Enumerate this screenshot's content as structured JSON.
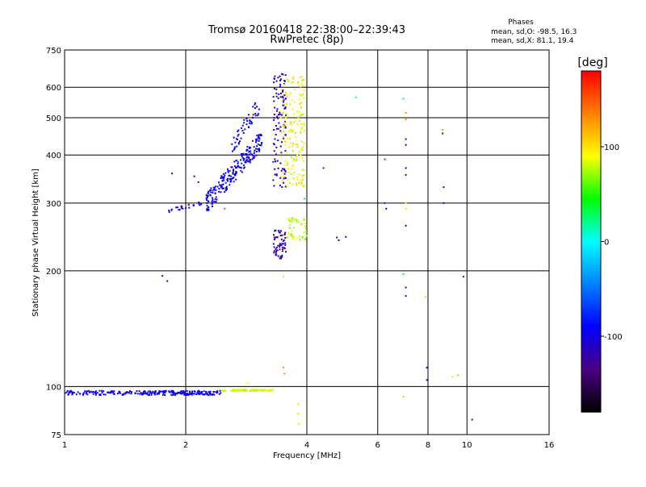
{
  "chart_data": {
    "type": "scatter",
    "title": "Tromsø 20160418 22:38:00–22:39:43",
    "subtitle": "RwPretec (8p)",
    "xlabel": "Frequency [MHz]",
    "ylabel": "Stationary phase Virtual Height [km]",
    "x_scale": "log2",
    "y_scale": "log",
    "xlim": [
      1,
      16
    ],
    "ylim": [
      75,
      750
    ],
    "x_ticks": [
      1,
      2,
      4,
      6,
      8,
      10,
      16
    ],
    "y_ticks": [
      75,
      100,
      200,
      300,
      400,
      500,
      600,
      750
    ],
    "grid": true,
    "stats": {
      "header": "Phases",
      "line_o": "mean, sd,O: -98.5, 16.3",
      "line_x": "mean, sd,X:  81.1, 19.4"
    },
    "colorbar": {
      "label": "[deg]",
      "range": [
        -180,
        180
      ],
      "ticks": [
        100,
        0,
        -100
      ],
      "colors": [
        "#000000",
        "#4b0082",
        "#0000ff",
        "#0080ff",
        "#00ffff",
        "#00ff00",
        "#ffff00",
        "#ff8000",
        "#ff0000"
      ]
    },
    "clusters": [
      {
        "desc": "blue E-layer trace",
        "f": [
          1.0,
          2.45
        ],
        "h": [
          95,
          97.5
        ],
        "phase": [
          -110,
          -85
        ],
        "n": 260,
        "shape": "flat",
        "spread": 0.004
      },
      {
        "desc": "yellow E-layer trace",
        "f": [
          2.45,
          3.3
        ],
        "h": [
          97.3,
          98.2
        ],
        "phase": [
          70,
          95
        ],
        "n": 110,
        "shape": "flat",
        "spread": 0.004
      },
      {
        "desc": "F trace low",
        "f": [
          1.8,
          2.2
        ],
        "h": [
          286,
          300
        ],
        "phase": [
          -115,
          -90
        ],
        "n": 22,
        "shape": "rise",
        "spread": 0.01
      },
      {
        "desc": "F trace",
        "f": [
          2.25,
          3.1
        ],
        "h": [
          300,
          440
        ],
        "phase": [
          -120,
          -75
        ],
        "n": 240,
        "shape": "rise",
        "spread": 0.06
      },
      {
        "desc": "F trace upper",
        "f": [
          2.6,
          3.05
        ],
        "h": [
          420,
          540
        ],
        "phase": [
          -110,
          -80
        ],
        "n": 50,
        "shape": "rise",
        "spread": 0.05
      },
      {
        "desc": "blue column near 3.4 MHz",
        "f": [
          3.3,
          3.55
        ],
        "h": [
          330,
          650
        ],
        "phase": [
          -130,
          -90
        ],
        "n": 110,
        "shape": "cloud",
        "spread": 0
      },
      {
        "desc": "yellow column near 3.7 MHz",
        "f": [
          3.45,
          3.95
        ],
        "h": [
          330,
          640
        ],
        "phase": [
          70,
          110
        ],
        "n": 160,
        "shape": "cloud",
        "spread": 0
      },
      {
        "desc": "blue/purple blob",
        "f": [
          3.3,
          3.55
        ],
        "h": [
          215,
          255
        ],
        "phase": [
          -140,
          -100
        ],
        "n": 60,
        "shape": "cloud",
        "spread": 0
      },
      {
        "desc": "yellow blob",
        "f": [
          3.55,
          4.0
        ],
        "h": [
          240,
          275
        ],
        "phase": [
          60,
          100
        ],
        "n": 45,
        "shape": "cloud",
        "spread": 0
      }
    ],
    "points": [
      {
        "x": 1.85,
        "y": 358,
        "phase": -120
      },
      {
        "x": 1.75,
        "y": 194,
        "phase": -130
      },
      {
        "x": 1.8,
        "y": 188,
        "phase": -120
      },
      {
        "x": 2.1,
        "y": 352,
        "phase": -110
      },
      {
        "x": 2.15,
        "y": 340,
        "phase": -110
      },
      {
        "x": 2.5,
        "y": 290,
        "phase": 150
      },
      {
        "x": 2.85,
        "y": 102,
        "phase": 90
      },
      {
        "x": 3.5,
        "y": 193,
        "phase": 80
      },
      {
        "x": 3.5,
        "y": 112,
        "phase": 130
      },
      {
        "x": 3.52,
        "y": 108,
        "phase": 130
      },
      {
        "x": 3.8,
        "y": 90,
        "phase": 80
      },
      {
        "x": 3.8,
        "y": 85,
        "phase": 80
      },
      {
        "x": 3.82,
        "y": 80,
        "phase": 80
      },
      {
        "x": 3.95,
        "y": 308,
        "phase": 30
      },
      {
        "x": 4.4,
        "y": 370,
        "phase": -80
      },
      {
        "x": 4.75,
        "y": 244,
        "phase": -110
      },
      {
        "x": 4.8,
        "y": 240,
        "phase": -110
      },
      {
        "x": 5.0,
        "y": 245,
        "phase": -100
      },
      {
        "x": 5.3,
        "y": 565,
        "phase": 20
      },
      {
        "x": 6.25,
        "y": 390,
        "phase": 170
      },
      {
        "x": 6.25,
        "y": 300,
        "phase": -80
      },
      {
        "x": 6.3,
        "y": 290,
        "phase": -90
      },
      {
        "x": 6.95,
        "y": 560,
        "phase": 20
      },
      {
        "x": 7.05,
        "y": 515,
        "phase": 130
      },
      {
        "x": 7.05,
        "y": 495,
        "phase": 130
      },
      {
        "x": 7.05,
        "y": 440,
        "phase": -100
      },
      {
        "x": 7.05,
        "y": 425,
        "phase": -100
      },
      {
        "x": 7.05,
        "y": 370,
        "phase": -120
      },
      {
        "x": 7.05,
        "y": 355,
        "phase": -120
      },
      {
        "x": 7.05,
        "y": 300,
        "phase": 100
      },
      {
        "x": 7.05,
        "y": 290,
        "phase": 100
      },
      {
        "x": 7.05,
        "y": 262,
        "phase": -100
      },
      {
        "x": 6.95,
        "y": 196,
        "phase": 30
      },
      {
        "x": 7.05,
        "y": 181,
        "phase": -110
      },
      {
        "x": 7.05,
        "y": 172,
        "phase": -110
      },
      {
        "x": 6.95,
        "y": 94,
        "phase": 110
      },
      {
        "x": 7.9,
        "y": 171,
        "phase": 110
      },
      {
        "x": 7.95,
        "y": 112,
        "phase": -110
      },
      {
        "x": 7.95,
        "y": 104,
        "phase": -110
      },
      {
        "x": 8.7,
        "y": 465,
        "phase": 60
      },
      {
        "x": 8.7,
        "y": 455,
        "phase": -100
      },
      {
        "x": 8.75,
        "y": 330,
        "phase": -110
      },
      {
        "x": 8.75,
        "y": 300,
        "phase": -110
      },
      {
        "x": 9.2,
        "y": 106,
        "phase": 80
      },
      {
        "x": 9.5,
        "y": 107,
        "phase": 60
      },
      {
        "x": 9.8,
        "y": 193,
        "phase": -110
      },
      {
        "x": 10.3,
        "y": 82,
        "phase": -110
      }
    ]
  }
}
